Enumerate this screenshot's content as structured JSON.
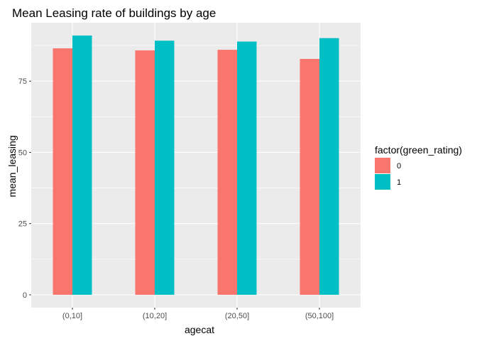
{
  "chart_data": {
    "type": "bar",
    "title": "Mean Leasing rate of buildings by age",
    "xlabel": "agecat",
    "ylabel": "mean_leasing",
    "categories": [
      "(0,10]",
      "(10,20]",
      "(20,50]",
      "(50,100]"
    ],
    "series": [
      {
        "name": "0",
        "color": "#F8766D",
        "values": [
          86.5,
          85.8,
          86.0,
          82.8
        ]
      },
      {
        "name": "1",
        "color": "#00BFC4",
        "values": [
          91.0,
          89.2,
          88.9,
          90.1
        ]
      }
    ],
    "yticks": [
      0,
      25,
      50,
      75
    ],
    "ytick_labels": [
      "0",
      "25",
      "50",
      "75"
    ],
    "ylim": [
      -4.5,
      95.5
    ],
    "grid": true,
    "legend": {
      "title": "factor(green_rating)",
      "position": "right"
    },
    "colors": {
      "panel_background": "#EBEBEB",
      "grid": "#FFFFFF"
    }
  }
}
